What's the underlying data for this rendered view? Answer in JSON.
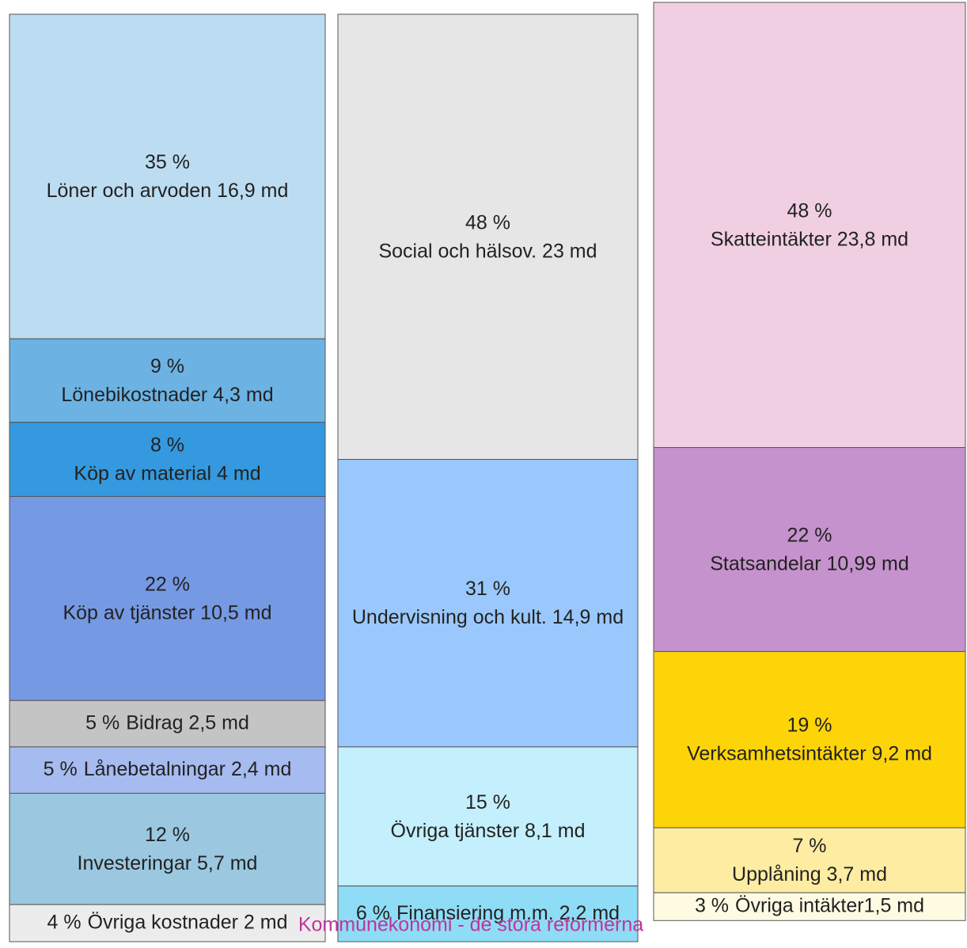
{
  "annotation": "Kommunekonomi - de stora reformerna",
  "chart_data": [
    {
      "type": "stacked-column",
      "series": [
        {
          "name": "Löner och arvoden 16,9 md",
          "color": "#bcdcf2",
          "values": [
            35
          ],
          "value_labels": [
            "35 %"
          ]
        },
        {
          "name": "Lönebikostnader 4,3 md",
          "color": "#6cb3e4",
          "values": [
            9
          ],
          "value_labels": [
            "9 %"
          ]
        },
        {
          "name": "Köp av material 4 md",
          "color": "#3499de",
          "values": [
            8
          ],
          "value_labels": [
            "8 %"
          ]
        },
        {
          "name": "Köp av tjänster 10,5 md",
          "color": "#7699e3",
          "values": [
            22
          ],
          "value_labels": [
            "22 %"
          ]
        },
        {
          "name": "Bidrag 2,5 md",
          "color": "#c4c4c4",
          "values": [
            5
          ],
          "value_labels": [
            "5 %"
          ]
        },
        {
          "name": "Lånebetalningar 2,4 md",
          "color": "#a6bbef",
          "values": [
            5
          ],
          "value_labels": [
            "5 %"
          ]
        },
        {
          "name": "Investeringar 5,7 md",
          "color": "#9bc8e0",
          "values": [
            12
          ],
          "value_labels": [
            "12 %"
          ]
        },
        {
          "name": "Övriga kostnader 2 md",
          "color": "#ececec",
          "values": [
            4
          ],
          "value_labels": [
            "4 %"
          ]
        }
      ]
    },
    {
      "type": "stacked-column",
      "series": [
        {
          "name": "Social och hälsov. 23 md",
          "color": "#e6e6e6",
          "values": [
            48
          ],
          "value_labels": [
            "48 %"
          ]
        },
        {
          "name": "Undervisning och kult. 14,9 md",
          "color": "#9ac8fc",
          "values": [
            31
          ],
          "value_labels": [
            "31 %"
          ]
        },
        {
          "name": "Övriga tjänster 8,1 md",
          "color": "#c4effc",
          "values": [
            15
          ],
          "value_labels": [
            "15 %"
          ]
        },
        {
          "name": "Finansiering m.m. 2,2 md",
          "color": "#8fdcf6",
          "values": [
            6
          ],
          "value_labels": [
            "6 %"
          ]
        }
      ]
    },
    {
      "type": "stacked-column",
      "series": [
        {
          "name": "Skatteintäkter 23,8 md",
          "color": "#f0cfe2",
          "values": [
            48
          ],
          "value_labels": [
            "48 %"
          ]
        },
        {
          "name": "Statsandelar 10,99 md",
          "color": "#c692cd",
          "values": [
            22
          ],
          "value_labels": [
            "22 %"
          ]
        },
        {
          "name": "Verksamhetsintäkter 9,2 md",
          "color": "#fdd408",
          "values": [
            19
          ],
          "value_labels": [
            "19 %"
          ]
        },
        {
          "name": "Upplåning 3,7 md",
          "color": "#fdeca2",
          "values": [
            7
          ],
          "value_labels": [
            "7 %"
          ]
        },
        {
          "name": "Övriga intäkter1,5 md",
          "color": "#fffbe3",
          "values": [
            3
          ],
          "value_labels": [
            "3 %"
          ]
        }
      ]
    }
  ]
}
